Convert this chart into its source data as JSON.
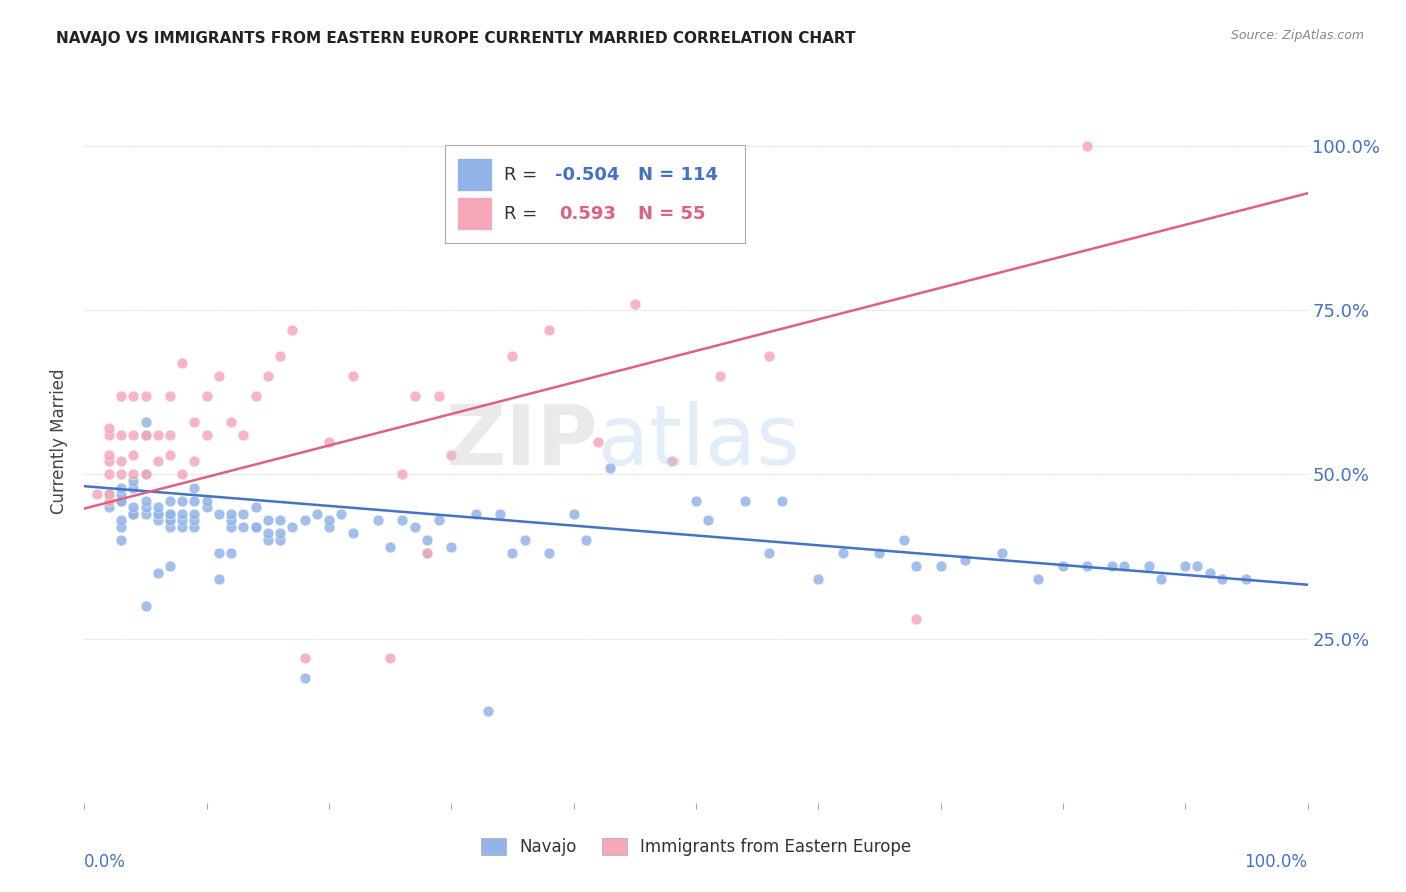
{
  "title": "NAVAJO VS IMMIGRANTS FROM EASTERN EUROPE CURRENTLY MARRIED CORRELATION CHART",
  "source": "Source: ZipAtlas.com",
  "ylabel": "Currently Married",
  "y_ticks": [
    0.25,
    0.5,
    0.75,
    1.0
  ],
  "y_tick_labels": [
    "25.0%",
    "50.0%",
    "75.0%",
    "100.0%"
  ],
  "navajo_R": "-0.504",
  "navajo_N": "114",
  "eastern_europe_R": "0.593",
  "eastern_europe_N": "55",
  "navajo_color": "#92b4e8",
  "eastern_europe_color": "#f4a8b8",
  "navajo_line_color": "#4472c4",
  "eastern_europe_line_color": "#e06080",
  "navajo_scatter_x": [
    0.02,
    0.02,
    0.03,
    0.03,
    0.03,
    0.03,
    0.03,
    0.03,
    0.03,
    0.04,
    0.04,
    0.04,
    0.04,
    0.04,
    0.04,
    0.05,
    0.05,
    0.05,
    0.05,
    0.05,
    0.05,
    0.05,
    0.06,
    0.06,
    0.06,
    0.06,
    0.06,
    0.06,
    0.07,
    0.07,
    0.07,
    0.07,
    0.07,
    0.07,
    0.07,
    0.08,
    0.08,
    0.08,
    0.08,
    0.09,
    0.09,
    0.09,
    0.09,
    0.09,
    0.1,
    0.1,
    0.11,
    0.11,
    0.11,
    0.12,
    0.12,
    0.12,
    0.12,
    0.13,
    0.13,
    0.14,
    0.14,
    0.14,
    0.15,
    0.15,
    0.15,
    0.16,
    0.16,
    0.16,
    0.17,
    0.18,
    0.18,
    0.19,
    0.2,
    0.2,
    0.21,
    0.22,
    0.24,
    0.25,
    0.26,
    0.27,
    0.28,
    0.28,
    0.29,
    0.3,
    0.32,
    0.33,
    0.34,
    0.35,
    0.36,
    0.38,
    0.4,
    0.41,
    0.43,
    0.5,
    0.51,
    0.54,
    0.56,
    0.57,
    0.6,
    0.62,
    0.65,
    0.67,
    0.68,
    0.7,
    0.72,
    0.75,
    0.78,
    0.8,
    0.82,
    0.84,
    0.85,
    0.87,
    0.88,
    0.9,
    0.91,
    0.92,
    0.93,
    0.95
  ],
  "navajo_scatter_y": [
    0.45,
    0.47,
    0.42,
    0.46,
    0.46,
    0.47,
    0.48,
    0.43,
    0.4,
    0.44,
    0.44,
    0.44,
    0.45,
    0.48,
    0.49,
    0.3,
    0.44,
    0.45,
    0.46,
    0.5,
    0.56,
    0.58,
    0.35,
    0.43,
    0.44,
    0.44,
    0.44,
    0.45,
    0.36,
    0.42,
    0.43,
    0.43,
    0.44,
    0.44,
    0.46,
    0.42,
    0.43,
    0.44,
    0.46,
    0.42,
    0.43,
    0.44,
    0.46,
    0.48,
    0.45,
    0.46,
    0.34,
    0.38,
    0.44,
    0.38,
    0.42,
    0.43,
    0.44,
    0.42,
    0.44,
    0.42,
    0.42,
    0.45,
    0.4,
    0.41,
    0.43,
    0.4,
    0.41,
    0.43,
    0.42,
    0.19,
    0.43,
    0.44,
    0.42,
    0.43,
    0.44,
    0.41,
    0.43,
    0.39,
    0.43,
    0.42,
    0.38,
    0.4,
    0.43,
    0.39,
    0.44,
    0.14,
    0.44,
    0.38,
    0.4,
    0.38,
    0.44,
    0.4,
    0.51,
    0.46,
    0.43,
    0.46,
    0.38,
    0.46,
    0.34,
    0.38,
    0.38,
    0.4,
    0.36,
    0.36,
    0.37,
    0.38,
    0.34,
    0.36,
    0.36,
    0.36,
    0.36,
    0.36,
    0.34,
    0.36,
    0.36,
    0.35,
    0.34,
    0.34
  ],
  "eastern_scatter_x": [
    0.01,
    0.02,
    0.02,
    0.02,
    0.02,
    0.02,
    0.02,
    0.02,
    0.03,
    0.03,
    0.03,
    0.03,
    0.04,
    0.04,
    0.04,
    0.04,
    0.05,
    0.05,
    0.05,
    0.06,
    0.06,
    0.07,
    0.07,
    0.07,
    0.08,
    0.08,
    0.09,
    0.09,
    0.1,
    0.1,
    0.11,
    0.12,
    0.13,
    0.14,
    0.15,
    0.16,
    0.17,
    0.18,
    0.2,
    0.22,
    0.25,
    0.26,
    0.27,
    0.28,
    0.29,
    0.3,
    0.35,
    0.38,
    0.42,
    0.45,
    0.48,
    0.52,
    0.56,
    0.68,
    0.82
  ],
  "eastern_scatter_y": [
    0.47,
    0.46,
    0.47,
    0.5,
    0.52,
    0.53,
    0.56,
    0.57,
    0.5,
    0.52,
    0.56,
    0.62,
    0.5,
    0.53,
    0.56,
    0.62,
    0.5,
    0.56,
    0.62,
    0.52,
    0.56,
    0.53,
    0.56,
    0.62,
    0.5,
    0.67,
    0.52,
    0.58,
    0.56,
    0.62,
    0.65,
    0.58,
    0.56,
    0.62,
    0.65,
    0.68,
    0.72,
    0.22,
    0.55,
    0.65,
    0.22,
    0.5,
    0.62,
    0.38,
    0.62,
    0.53,
    0.68,
    0.72,
    0.55,
    0.76,
    0.52,
    0.65,
    0.68,
    0.28,
    1.0
  ],
  "navajo_trend_x": [
    0.0,
    1.0
  ],
  "navajo_trend_y": [
    0.482,
    0.332
  ],
  "eastern_trend_x": [
    0.0,
    1.0
  ],
  "eastern_trend_y": [
    0.448,
    0.928
  ],
  "xlim": [
    0.0,
    1.0
  ],
  "ylim": [
    0.0,
    1.1
  ],
  "title_fontsize": 11,
  "tick_color": "#4472c4"
}
